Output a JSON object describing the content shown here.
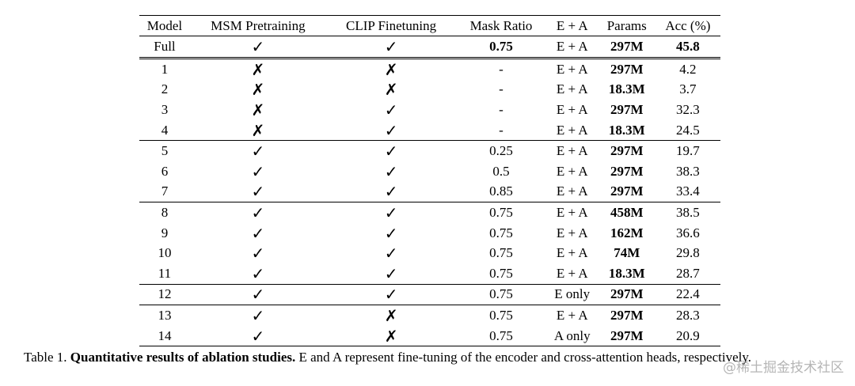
{
  "table": {
    "headers": [
      "Model",
      "MSM Pretraining",
      "CLIP Finetuning",
      "Mask Ratio",
      "E + A",
      "Params",
      "Acc (%)"
    ],
    "rows": [
      {
        "model": "Full",
        "msm": "✓",
        "clip": "✓",
        "mask": "0.75",
        "ea": "E + A",
        "params": "297M",
        "acc": "45.8"
      },
      {
        "model": "1",
        "msm": "✗",
        "clip": "✗",
        "mask": "-",
        "ea": "E + A",
        "params": "297M",
        "acc": "4.2"
      },
      {
        "model": "2",
        "msm": "✗",
        "clip": "✗",
        "mask": "-",
        "ea": "E + A",
        "params": "18.3M",
        "acc": "3.7"
      },
      {
        "model": "3",
        "msm": "✗",
        "clip": "✓",
        "mask": "-",
        "ea": "E + A",
        "params": "297M",
        "acc": "32.3"
      },
      {
        "model": "4",
        "msm": "✗",
        "clip": "✓",
        "mask": "-",
        "ea": "E + A",
        "params": "18.3M",
        "acc": "24.5"
      },
      {
        "model": "5",
        "msm": "✓",
        "clip": "✓",
        "mask": "0.25",
        "ea": "E + A",
        "params": "297M",
        "acc": "19.7"
      },
      {
        "model": "6",
        "msm": "✓",
        "clip": "✓",
        "mask": "0.5",
        "ea": "E + A",
        "params": "297M",
        "acc": "38.3"
      },
      {
        "model": "7",
        "msm": "✓",
        "clip": "✓",
        "mask": "0.85",
        "ea": "E + A",
        "params": "297M",
        "acc": "33.4"
      },
      {
        "model": "8",
        "msm": "✓",
        "clip": "✓",
        "mask": "0.75",
        "ea": "E + A",
        "params": "458M",
        "acc": "38.5"
      },
      {
        "model": "9",
        "msm": "✓",
        "clip": "✓",
        "mask": "0.75",
        "ea": "E + A",
        "params": "162M",
        "acc": "36.6"
      },
      {
        "model": "10",
        "msm": "✓",
        "clip": "✓",
        "mask": "0.75",
        "ea": "E + A",
        "params": "74M",
        "acc": "29.8"
      },
      {
        "model": "11",
        "msm": "✓",
        "clip": "✓",
        "mask": "0.75",
        "ea": "E + A",
        "params": "18.3M",
        "acc": "28.7"
      },
      {
        "model": "12",
        "msm": "✓",
        "clip": "✓",
        "mask": "0.75",
        "ea": "E only",
        "params": "297M",
        "acc": "22.4"
      },
      {
        "model": "13",
        "msm": "✓",
        "clip": "✗",
        "mask": "0.75",
        "ea": "E + A",
        "params": "297M",
        "acc": "28.3"
      },
      {
        "model": "14",
        "msm": "✓",
        "clip": "✗",
        "mask": "0.75",
        "ea": "A only",
        "params": "297M",
        "acc": "20.9"
      }
    ]
  },
  "caption": {
    "label": "Table 1.",
    "title": "Quantitative results of ablation studies.",
    "text": "E and A represent fine-tuning of the encoder and cross-attention heads, respectively."
  },
  "watermark": "@稀土掘金技术社区"
}
